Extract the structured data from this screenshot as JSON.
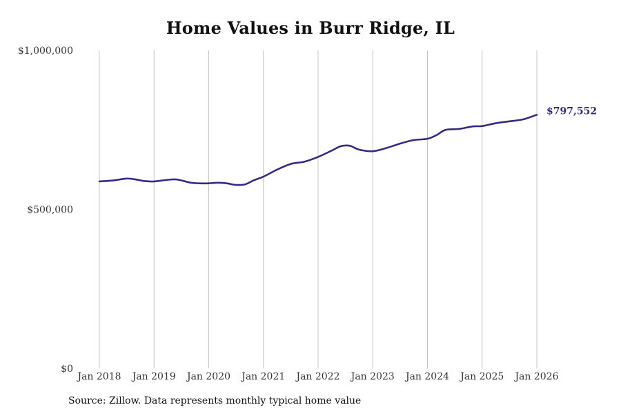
{
  "chart_data": {
    "type": "line",
    "title": "Home Values in Burr Ridge, IL",
    "xlabel": "",
    "ylabel": "",
    "ylim": [
      0,
      1000000
    ],
    "xlim": [
      2018.0,
      2026.0
    ],
    "y_ticks": [
      {
        "value": 1000000,
        "label": "$1,000,000"
      },
      {
        "value": 500000,
        "label": "$500,000"
      },
      {
        "value": 0,
        "label": "$0"
      }
    ],
    "x_ticks": [
      {
        "value": 2018,
        "label": "Jan 2018"
      },
      {
        "value": 2019,
        "label": "Jan 2019"
      },
      {
        "value": 2020,
        "label": "Jan 2020"
      },
      {
        "value": 2021,
        "label": "Jan 2021"
      },
      {
        "value": 2022,
        "label": "Jan 2022"
      },
      {
        "value": 2023,
        "label": "Jan 2023"
      },
      {
        "value": 2024,
        "label": "Jan 2024"
      },
      {
        "value": 2025,
        "label": "Jan 2025"
      },
      {
        "value": 2026,
        "label": "Jan 2026"
      }
    ],
    "grid": "vertical",
    "line_color": "#332a85",
    "series": [
      {
        "name": "Typical home value",
        "x": [
          2018.0,
          2018.25,
          2018.5,
          2018.67,
          2018.83,
          2019.0,
          2019.25,
          2019.42,
          2019.67,
          2019.83,
          2020.0,
          2020.17,
          2020.33,
          2020.5,
          2020.67,
          2020.83,
          2021.0,
          2021.25,
          2021.5,
          2021.75,
          2022.0,
          2022.25,
          2022.42,
          2022.58,
          2022.75,
          2023.0,
          2023.25,
          2023.5,
          2023.75,
          2024.0,
          2024.17,
          2024.33,
          2024.58,
          2024.83,
          2025.0,
          2025.25,
          2025.5,
          2025.75,
          2026.0
        ],
        "values": [
          588000,
          591000,
          597000,
          594000,
          589000,
          588000,
          593000,
          594000,
          584000,
          582000,
          582000,
          584000,
          582000,
          577000,
          579000,
          592000,
          603000,
          625000,
          643000,
          650000,
          665000,
          685000,
          699000,
          700000,
          688000,
          683000,
          693000,
          707000,
          718000,
          722000,
          734000,
          750000,
          753000,
          761000,
          762000,
          771000,
          777000,
          783000,
          797552
        ]
      }
    ],
    "end_label": "$797,552"
  },
  "source_note": "Source: Zillow. Data represents monthly typical home value"
}
